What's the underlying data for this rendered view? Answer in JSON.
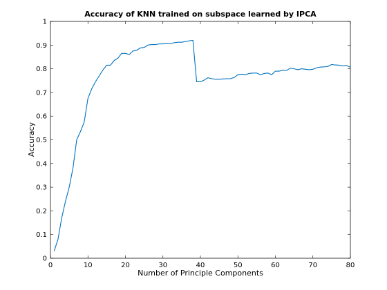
{
  "chart_data": {
    "type": "line",
    "title": "Accuracy of KNN trained on subspace learned by IPCA",
    "xlabel": "Number of Principle Components",
    "ylabel": "Accuracy",
    "xlim": [
      0,
      80
    ],
    "ylim": [
      0,
      1
    ],
    "xticks": [
      0,
      10,
      20,
      30,
      40,
      50,
      60,
      70,
      80
    ],
    "yticks": [
      0,
      0.1,
      0.2,
      0.3,
      0.4,
      0.5,
      0.6,
      0.7,
      0.8,
      0.9,
      1
    ],
    "xtick_labels": [
      "0",
      "10",
      "20",
      "30",
      "40",
      "50",
      "60",
      "70",
      "80"
    ],
    "ytick_labels": [
      "0",
      "0.1",
      "0.2",
      "0.3",
      "0.4",
      "0.5",
      "0.6",
      "0.7",
      "0.8",
      "0.9",
      "1"
    ],
    "grid": false,
    "series": [
      {
        "color": "#0072bd",
        "x": [
          1,
          2,
          3,
          4,
          5,
          6,
          7,
          8,
          9,
          10,
          11,
          12,
          13,
          14,
          15,
          16,
          17,
          18,
          19,
          20,
          21,
          22,
          23,
          24,
          25,
          26,
          27,
          28,
          29,
          30,
          31,
          32,
          33,
          34,
          35,
          36,
          37,
          38,
          39,
          40,
          41,
          42,
          43,
          44,
          45,
          46,
          47,
          48,
          49,
          50,
          51,
          52,
          53,
          54,
          55,
          56,
          57,
          58,
          59,
          60,
          61,
          62,
          63,
          64,
          65,
          66,
          67,
          68,
          69,
          70,
          71,
          72,
          73,
          74,
          75,
          76,
          77,
          78,
          79,
          80
        ],
        "values": [
          0.03,
          0.08,
          0.17,
          0.24,
          0.3,
          0.38,
          0.5,
          0.535,
          0.575,
          0.675,
          0.715,
          0.745,
          0.77,
          0.795,
          0.815,
          0.815,
          0.835,
          0.845,
          0.865,
          0.865,
          0.86,
          0.875,
          0.878,
          0.888,
          0.89,
          0.9,
          0.902,
          0.902,
          0.905,
          0.905,
          0.908,
          0.906,
          0.91,
          0.912,
          0.912,
          0.915,
          0.918,
          0.92,
          0.745,
          0.745,
          0.752,
          0.762,
          0.758,
          0.756,
          0.756,
          0.757,
          0.758,
          0.758,
          0.763,
          0.775,
          0.777,
          0.775,
          0.78,
          0.782,
          0.782,
          0.775,
          0.78,
          0.782,
          0.775,
          0.79,
          0.79,
          0.794,
          0.793,
          0.803,
          0.8,
          0.796,
          0.8,
          0.798,
          0.796,
          0.798,
          0.804,
          0.807,
          0.808,
          0.81,
          0.818,
          0.816,
          0.815,
          0.812,
          0.814,
          0.806
        ]
      }
    ]
  }
}
